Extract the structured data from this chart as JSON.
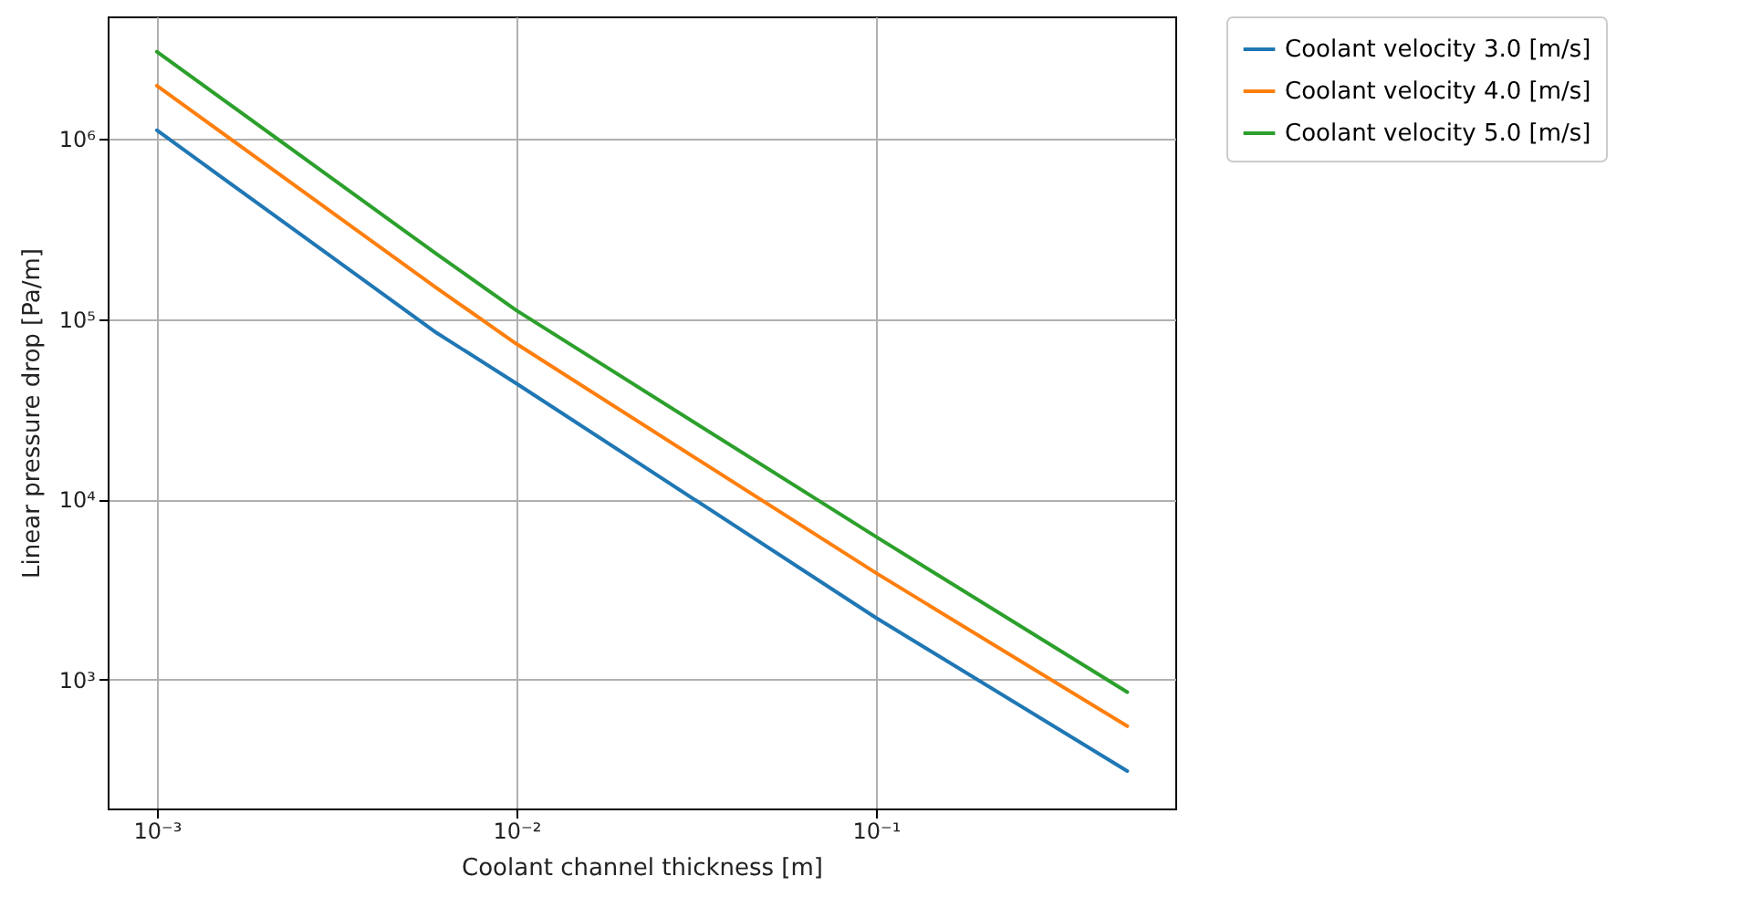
{
  "chart_data": {
    "type": "line",
    "xlabel": "Coolant channel thickness [m]",
    "ylabel": "Linear pressure drop [Pa/m]",
    "log": "xy",
    "grid": true,
    "legend": "right",
    "xlim": [
      0.00073,
      0.68
    ],
    "ylim": [
      192,
      4800000
    ],
    "xticks": [
      {
        "value": 0.001,
        "label": "10⁻³"
      },
      {
        "value": 0.01,
        "label": "10⁻²"
      },
      {
        "value": 0.1,
        "label": "10⁻¹"
      }
    ],
    "yticks": [
      {
        "value": 1000,
        "label": "10³"
      },
      {
        "value": 10000,
        "label": "10⁴"
      },
      {
        "value": 100000,
        "label": "10⁵"
      },
      {
        "value": 1000000,
        "label": "10⁶"
      }
    ],
    "series": [
      {
        "name": "Coolant velocity 3.0 [m/s]",
        "color": "#1f77b4",
        "x": [
          0.001,
          0.006,
          0.01,
          0.1,
          0.5
        ],
        "values": [
          1120000,
          84000,
          44000,
          2200,
          310
        ]
      },
      {
        "name": "Coolant velocity 4.0 [m/s]",
        "color": "#ff7f0e",
        "x": [
          0.001,
          0.006,
          0.01,
          0.1,
          0.5
        ],
        "values": [
          1980000,
          149000,
          73000,
          3900,
          550
        ]
      },
      {
        "name": "Coolant velocity 5.0 [m/s]",
        "color": "#2ca02c",
        "x": [
          0.001,
          0.006,
          0.01,
          0.1,
          0.5
        ],
        "values": [
          3060000,
          230000,
          112000,
          6200,
          850
        ]
      }
    ]
  }
}
